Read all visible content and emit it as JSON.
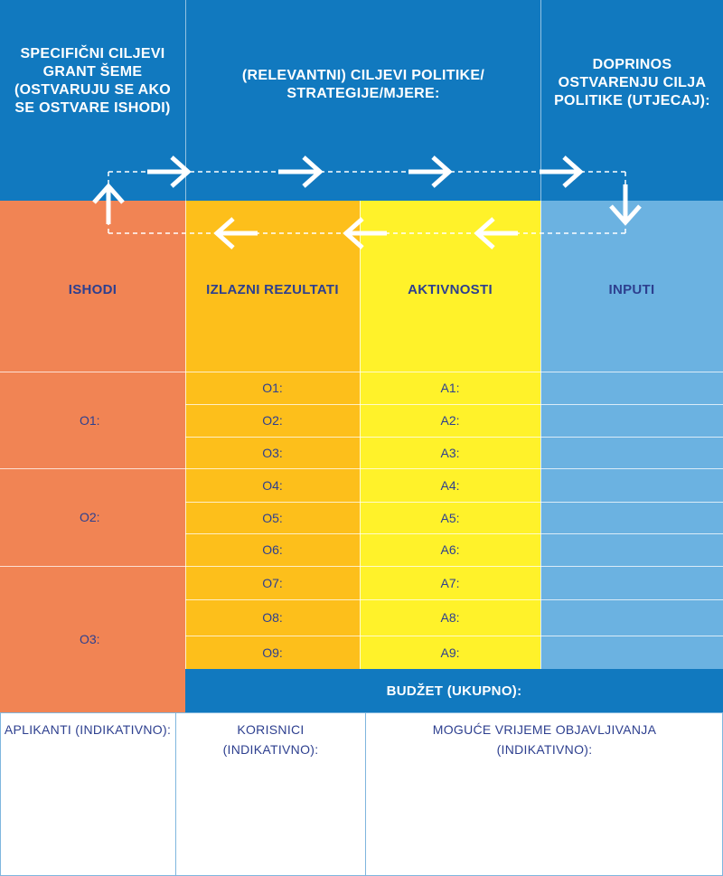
{
  "header": {
    "specific_goals": "SPECIFIČNI CILJEVI GRANT ŠEME (OSTVARUJU SE AKO SE OSTVARE ISHODI)",
    "policy_goals": "(RELEVANTNI) CILJEVI POLITIKE/ STRATEGIJE/MJERE:",
    "contribution": "DOPRINOS OSTVARENJU CILJA POLITIKE (UTJECAJ):"
  },
  "columns": {
    "outcomes": "ISHODI",
    "outputs": "IZLAZNI REZULTATI",
    "activities": "AKTIVNOSTI",
    "inputs": "INPUTI"
  },
  "outcomes": [
    "O1:",
    "O2:",
    "O3:"
  ],
  "outputs": [
    "O1:",
    "O2:",
    "O3:",
    "O4:",
    "O5:",
    "O6:",
    "O7:",
    "O8:",
    "O9:"
  ],
  "activities": [
    "A1:",
    "A2:",
    "A3:",
    "A4:",
    "A5:",
    "A6:",
    "A7:",
    "A8:",
    "A9:"
  ],
  "budget": "BUDŽET (UKUPNO):",
  "bottom": {
    "applicants": "APLIKANTI (INDIKATIVNO):",
    "beneficiaries": "KORISNICI (INDIKATIVNO):",
    "publication_time": "MOGUĆE VRIJEME OBJAVLJIVANJA (INDIKATIVNO):"
  },
  "colors": {
    "header_blue": "#1179bf",
    "outcomes_orange": "#f18454",
    "outputs_amber": "#fdbf1b",
    "activities_yellow": "#fff22a",
    "inputs_lightblue": "#6bb2e1",
    "text_navy": "#2d3f8f"
  }
}
